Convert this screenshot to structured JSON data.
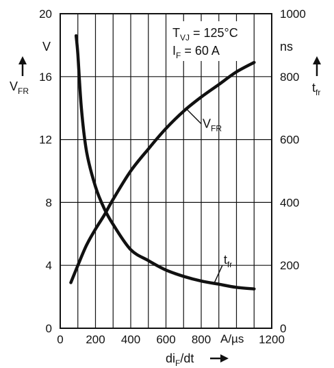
{
  "chart_data": {
    "type": "line",
    "x": {
      "label_main": "di",
      "label_sub": "F",
      "label_rest": "/dt",
      "unit": "A/µs",
      "range": [
        0,
        1200
      ],
      "ticks": [
        "0",
        "200",
        "400",
        "600",
        "800",
        "1200"
      ]
    },
    "y_left": {
      "label_main": "V",
      "label_sub": "FR",
      "unit": "V",
      "range": [
        0,
        20
      ],
      "ticks": [
        "0",
        "4",
        "8",
        "12",
        "16",
        "20"
      ]
    },
    "y_right": {
      "label_main": "t",
      "label_sub": "fr",
      "unit": "ns",
      "range": [
        0,
        1000
      ],
      "ticks": [
        "0",
        "200",
        "400",
        "600",
        "800",
        "1000"
      ]
    },
    "annotation": {
      "line1_main": "T",
      "line1_sub": "VJ",
      "line1_rest": " = 125°C",
      "line2_main": "I",
      "line2_sub": "F",
      "line2_rest": "  =   60  A"
    },
    "grid": true,
    "series": [
      {
        "name_main": "V",
        "name_sub": "FR",
        "axis": "left",
        "points": [
          [
            60,
            2.9
          ],
          [
            100,
            4.0
          ],
          [
            150,
            5.3
          ],
          [
            200,
            6.3
          ],
          [
            250,
            7.2
          ],
          [
            300,
            8.2
          ],
          [
            400,
            10.0
          ],
          [
            500,
            11.4
          ],
          [
            600,
            12.7
          ],
          [
            700,
            13.8
          ],
          [
            800,
            14.7
          ],
          [
            900,
            15.5
          ],
          [
            1000,
            16.3
          ],
          [
            1100,
            16.9
          ]
        ]
      },
      {
        "name_main": "t",
        "name_sub": "fr",
        "axis": "right",
        "points": [
          [
            90,
            930
          ],
          [
            100,
            870
          ],
          [
            120,
            700
          ],
          [
            150,
            560
          ],
          [
            200,
            450
          ],
          [
            250,
            380
          ],
          [
            300,
            330
          ],
          [
            400,
            250
          ],
          [
            500,
            215
          ],
          [
            600,
            185
          ],
          [
            700,
            165
          ],
          [
            800,
            150
          ],
          [
            900,
            140
          ],
          [
            1000,
            130
          ],
          [
            1100,
            125
          ]
        ]
      }
    ]
  }
}
